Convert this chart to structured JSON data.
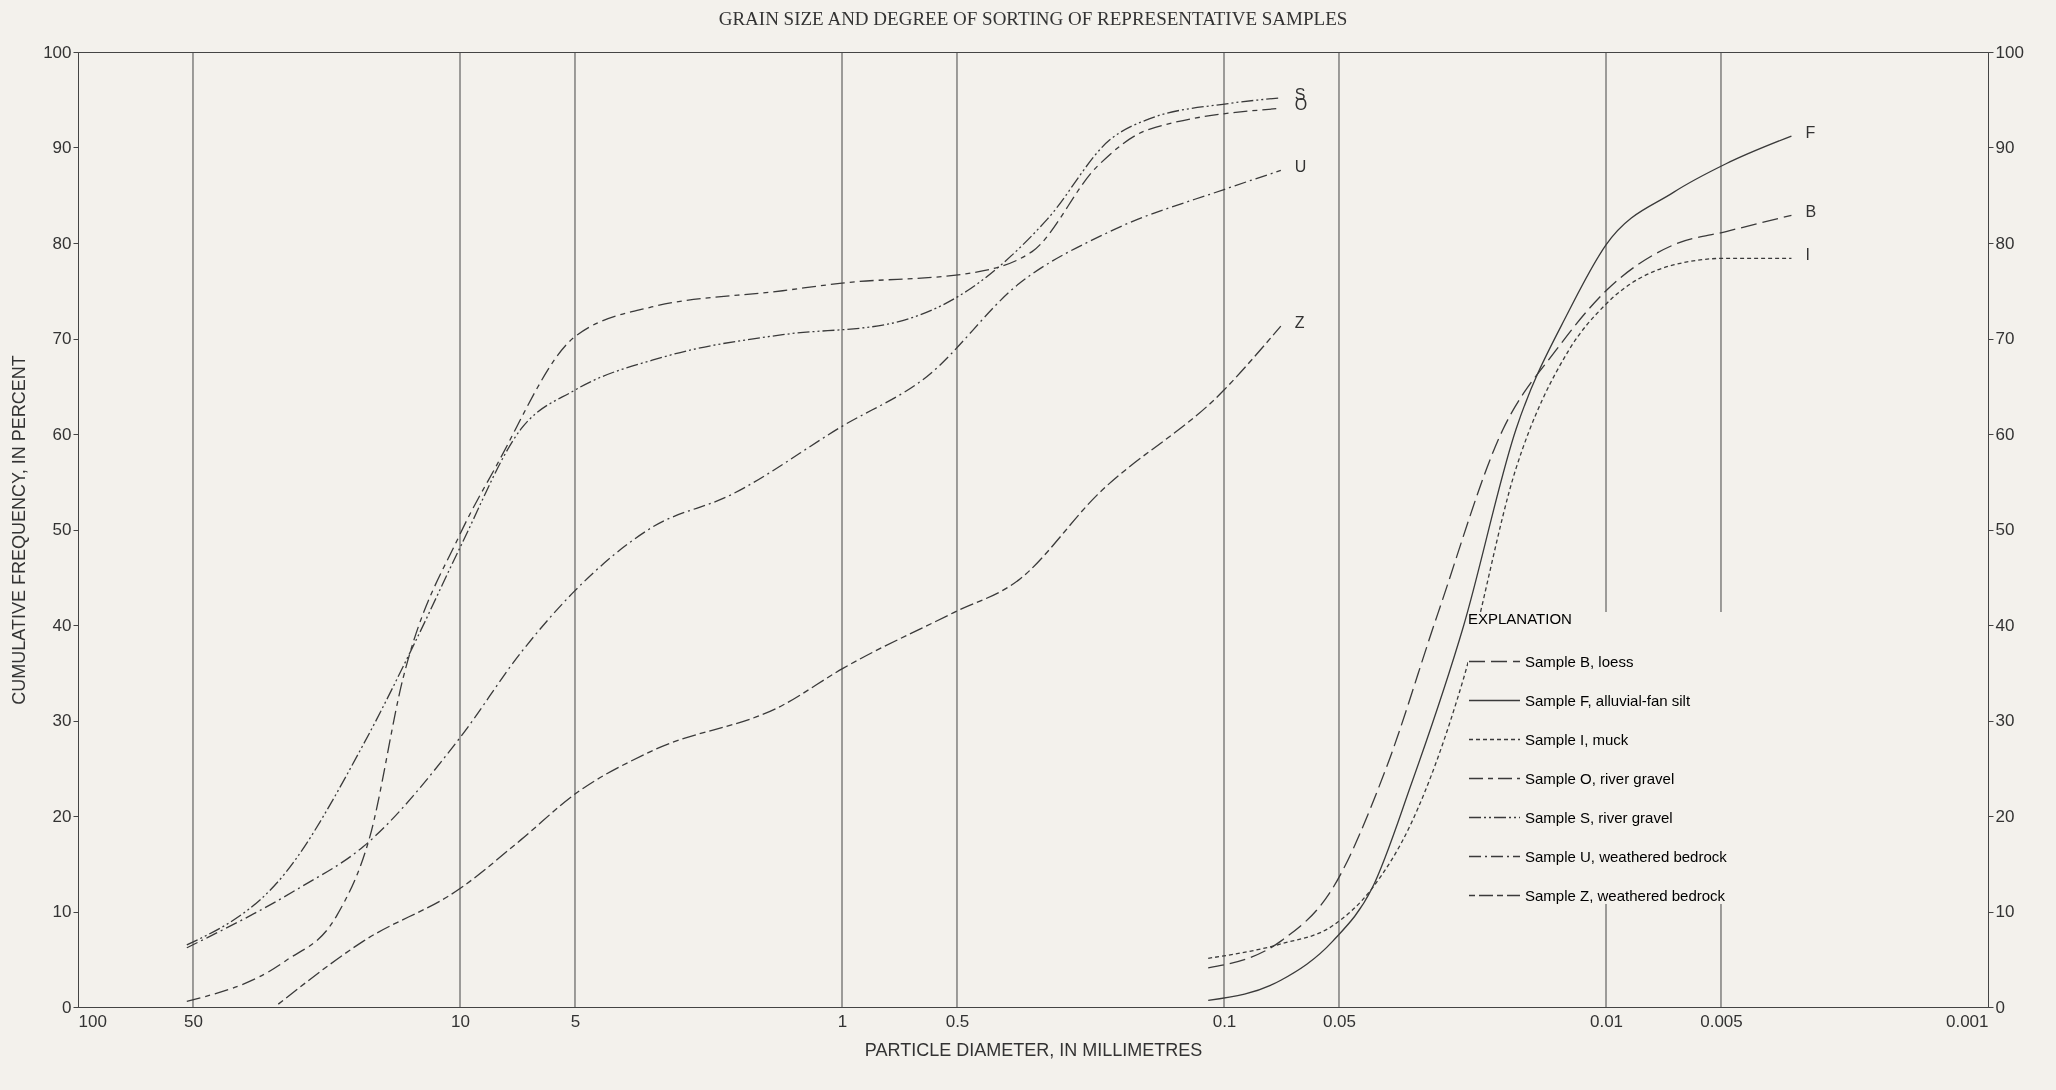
{
  "chart_data": {
    "type": "line",
    "title": "GRAIN SIZE AND DEGREE OF SORTING OF REPRESENTATIVE SAMPLES",
    "xlabel": "PARTICLE DIAMETER,  IN MILLIMETRES",
    "ylabel": "CUMULATIVE FREQUENCY, IN PERCENT",
    "legend_title": "EXPLANATION",
    "log": "x",
    "grid": "x",
    "legend": "bottom right",
    "xlim": [
      100,
      0.001
    ],
    "xticks": [
      100,
      50,
      10,
      5,
      1,
      0.5,
      0.1,
      0.05,
      0.01,
      0.005,
      0.001
    ],
    "ylim": [
      0,
      100
    ],
    "yticks": [
      0,
      10,
      20,
      30,
      40,
      50,
      60,
      70,
      80,
      90,
      100
    ],
    "y2lim": [
      0,
      100
    ],
    "y2ticks": [
      0,
      10,
      20,
      30,
      40,
      50,
      60,
      70,
      80,
      90,
      100
    ],
    "series": [
      {
        "name": "Sample B,  loess",
        "color": "#3a3a3a",
        "line_style": "longdash",
        "x": [
          0.11,
          0.071,
          0.052,
          0.0378,
          0.0275,
          0.0186,
          0.0135,
          0.01,
          0.00666,
          0.00485,
          0.00327
        ],
        "values": [
          4.1,
          6.9,
          12.4,
          24.8,
          41.3,
          60.5,
          68.8,
          75,
          79.8,
          81.2,
          82.9
        ]
      },
      {
        "name": "Sample F,  alluvial-fan silt",
        "color": "#3a3a3a",
        "line_style": "solid",
        "x": [
          0.11,
          0.071,
          0.0519,
          0.041,
          0.0323,
          0.0236,
          0.0172,
          0.0125,
          0.01,
          0.00666,
          0.00485,
          0.00327
        ],
        "values": [
          0.7,
          2.8,
          6.9,
          12.4,
          23.4,
          39.9,
          60.5,
          72.9,
          79.8,
          85.3,
          88.3,
          91.2
        ]
      },
      {
        "name": "Sample I,  muck",
        "color": "#3a3a3a",
        "line_style": "dotted",
        "x": [
          0.11,
          0.071,
          0.052,
          0.041,
          0.0323,
          0.0236,
          0.0172,
          0.0125,
          0.01,
          0.00666,
          0.00485,
          0.00327
        ],
        "values": [
          5.1,
          6.6,
          8.5,
          12.4,
          19.3,
          34.4,
          56.4,
          68.8,
          73.6,
          77.7,
          78.4,
          78.4
        ]
      },
      {
        "name": "Sample O,  river gravel",
        "color": "#3a3a3a",
        "line_style": "dashed",
        "x": [
          51.9,
          28.7,
          21,
          17.2,
          14.1,
          10,
          8.1,
          5,
          3.15,
          1.43,
          1,
          0.47,
          0.318,
          0.215,
          0.157,
          0.071
        ],
        "values": [
          0.6,
          4.8,
          9.6,
          17.9,
          34.4,
          49.5,
          56.4,
          70.2,
          73.3,
          75,
          75.8,
          76.8,
          79.1,
          88,
          91.9,
          94.1
        ]
      },
      {
        "name": "Sample S,  river gravel",
        "color": "#3a3a3a",
        "line_style": "dashdotdot",
        "x": [
          51.9,
          28.7,
          17.9,
          13,
          10,
          6.93,
          5,
          2.91,
          1.43,
          0.76,
          0.47,
          0.29,
          0.199,
          0.157,
          0.0975,
          0.071
        ],
        "values": [
          6.5,
          14,
          27.5,
          38.5,
          48.1,
          60.5,
          64.6,
          68.1,
          70.4,
          71.5,
          75,
          82.5,
          90.8,
          93,
          94.6,
          95.2
        ]
      },
      {
        "name": "Sample U,  weathered bedrock",
        "color": "#3a3a3a",
        "line_style": "dashdot",
        "x": [
          51.9,
          26.5,
          17.9,
          10,
          6.93,
          5,
          3.15,
          1.96,
          1,
          0.6,
          0.345,
          0.199,
          0.1,
          0.071
        ],
        "values": [
          6.2,
          12.4,
          16.8,
          28.2,
          37.1,
          43.6,
          50.2,
          53.6,
          60.8,
          66,
          75.7,
          81.2,
          85.6,
          87.6
        ]
      },
      {
        "name": "Sample Z,  weathered bedrock",
        "color": "#3a3a3a",
        "line_style": "shortlong",
        "x": [
          29.9,
          17.9,
          10,
          6.93,
          5,
          3.15,
          1.43,
          1,
          0.51,
          0.345,
          0.215,
          0.1,
          0.071
        ],
        "values": [
          0.3,
          6.9,
          12.4,
          17.5,
          22.3,
          26.8,
          31.6,
          35.4,
          41.3,
          44.7,
          53.6,
          64.6,
          71.3
        ]
      }
    ],
    "annotations": [
      "B",
      "F",
      "I",
      "O",
      "S",
      "U",
      "Z"
    ]
  }
}
